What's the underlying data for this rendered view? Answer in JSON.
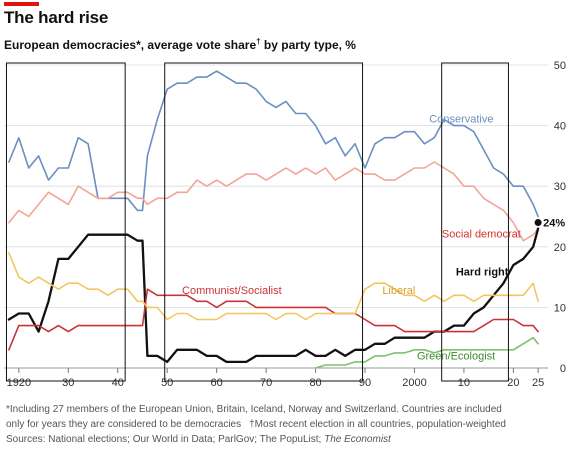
{
  "header": {
    "title": "The hard rise",
    "subtitle_main": "European democracies",
    "subtitle_mid": ", average vote share",
    "subtitle_end": " by party type, %",
    "mark_star": "*",
    "mark_dagger": "†",
    "accent_color": "#e3120b"
  },
  "footnotes": {
    "line1": "*Including 27 members of the European Union, Britain, Iceland, Norway and Switzerland. Countries are included",
    "line2a": "only for years they are considered to be democracies",
    "line2b": "†Most recent election in all countries, population-weighted",
    "line3a": "Sources: National elections; Our World in Data; ParlGov; The PopuList; ",
    "line3b": "The Economist"
  },
  "chart_data": {
    "type": "line",
    "xlim": [
      1917,
      2027
    ],
    "ylim": [
      0,
      50
    ],
    "x_ticks": [
      1920,
      1930,
      1940,
      1950,
      1960,
      1970,
      1980,
      1990,
      2000,
      2010,
      2020,
      2025
    ],
    "x_tick_labels": [
      "1920",
      "30",
      "40",
      "50",
      "60",
      "70",
      "80",
      "90",
      "2000",
      "10",
      "20",
      "25"
    ],
    "y_ticks": [
      0,
      10,
      20,
      30,
      40,
      50
    ],
    "y_tick_labels": [
      "0",
      "10",
      "20",
      "30",
      "40",
      "50"
    ],
    "grid": "horizontal",
    "highlight_periods": [
      [
        1917.5,
        1941.5
      ],
      [
        1949.5,
        1989.5
      ],
      [
        2005.5,
        2019
      ]
    ],
    "end_marker": {
      "x": 2025,
      "y": 24,
      "label": "24%"
    },
    "series": [
      {
        "name": "Conservative",
        "color": "#6a8fc0",
        "width": 1.6,
        "x": [
          1918,
          1920,
          1922,
          1924,
          1926,
          1928,
          1930,
          1932,
          1934,
          1936,
          1938,
          1940,
          1942,
          1944,
          1945,
          1946,
          1948,
          1950,
          1952,
          1954,
          1956,
          1958,
          1960,
          1962,
          1964,
          1966,
          1968,
          1970,
          1972,
          1974,
          1976,
          1978,
          1980,
          1982,
          1984,
          1986,
          1988,
          1990,
          1992,
          1994,
          1996,
          1998,
          2000,
          2002,
          2004,
          2006,
          2008,
          2010,
          2012,
          2014,
          2016,
          2018,
          2020,
          2022,
          2024,
          2025
        ],
        "y": [
          34,
          38,
          33,
          35,
          31,
          33,
          33,
          38,
          37,
          28,
          28,
          28,
          28,
          26,
          26,
          35,
          41,
          46,
          47,
          47,
          48,
          48,
          49,
          48,
          47,
          47,
          46,
          44,
          43,
          44,
          42,
          42,
          40,
          37,
          38,
          35,
          37,
          33,
          37,
          38,
          38,
          39,
          39,
          37,
          38,
          41,
          40,
          40,
          39,
          36,
          33,
          32,
          30,
          30,
          27,
          25
        ],
        "label": {
          "x": 2003,
          "y": 40.5,
          "anchor": "start"
        }
      },
      {
        "name": "Social democrat",
        "color": "#f2a596",
        "color_label": "#d6312b",
        "width": 1.6,
        "x": [
          1918,
          1920,
          1922,
          1924,
          1926,
          1928,
          1930,
          1932,
          1934,
          1936,
          1938,
          1940,
          1942,
          1944,
          1945,
          1946,
          1948,
          1950,
          1952,
          1954,
          1956,
          1958,
          1960,
          1962,
          1964,
          1966,
          1968,
          1970,
          1972,
          1974,
          1976,
          1978,
          1980,
          1982,
          1984,
          1986,
          1988,
          1990,
          1992,
          1994,
          1996,
          1998,
          2000,
          2002,
          2004,
          2006,
          2008,
          2010,
          2012,
          2014,
          2016,
          2018,
          2020,
          2022,
          2024,
          2025
        ],
        "y": [
          24,
          26,
          25,
          27,
          29,
          28,
          27,
          30,
          29,
          28,
          28,
          29,
          29,
          28,
          28,
          27,
          28,
          28,
          29,
          29,
          31,
          30,
          31,
          30,
          31,
          32,
          32,
          31,
          32,
          33,
          32,
          33,
          32,
          33,
          31,
          32,
          33,
          32,
          32,
          31,
          31,
          32,
          33,
          33,
          34,
          33,
          32,
          30,
          30,
          28,
          27,
          26,
          24,
          21,
          22,
          23
        ],
        "label": {
          "x": 2021.5,
          "y": 21.5,
          "anchor": "end"
        }
      },
      {
        "name": "Hard right",
        "color": "#111111",
        "width": 2.3,
        "x": [
          1918,
          1920,
          1922,
          1924,
          1926,
          1928,
          1930,
          1932,
          1934,
          1936,
          1938,
          1940,
          1942,
          1944,
          1945,
          1946,
          1948,
          1950,
          1952,
          1954,
          1956,
          1958,
          1960,
          1962,
          1964,
          1966,
          1968,
          1970,
          1972,
          1974,
          1976,
          1978,
          1980,
          1982,
          1984,
          1986,
          1988,
          1990,
          1992,
          1994,
          1996,
          1998,
          2000,
          2002,
          2004,
          2006,
          2008,
          2010,
          2012,
          2014,
          2016,
          2018,
          2020,
          2022,
          2024,
          2025
        ],
        "y": [
          8,
          9,
          9,
          6,
          11,
          18,
          18,
          20,
          22,
          22,
          22,
          22,
          22,
          21,
          21,
          2,
          2,
          1,
          3,
          3,
          3,
          2,
          2,
          1,
          1,
          1,
          2,
          2,
          2,
          2,
          2,
          3,
          2,
          2,
          3,
          2,
          3,
          3,
          4,
          4,
          5,
          5,
          5,
          5,
          6,
          6,
          7,
          7,
          9,
          10,
          12,
          14,
          17,
          18,
          20,
          23
        ],
        "label": {
          "x": 2019,
          "y": 15.3,
          "anchor": "end"
        }
      },
      {
        "name": "Communist/Socialist",
        "color": "#c93436",
        "color_label": "#c93436",
        "width": 1.6,
        "x": [
          1918,
          1920,
          1922,
          1924,
          1926,
          1928,
          1930,
          1932,
          1934,
          1936,
          1938,
          1940,
          1942,
          1944,
          1945,
          1946,
          1948,
          1950,
          1952,
          1954,
          1956,
          1958,
          1960,
          1962,
          1964,
          1966,
          1968,
          1970,
          1972,
          1974,
          1976,
          1978,
          1980,
          1982,
          1984,
          1986,
          1988,
          1990,
          1992,
          1994,
          1996,
          1998,
          2000,
          2002,
          2004,
          2006,
          2008,
          2010,
          2012,
          2014,
          2016,
          2018,
          2020,
          2022,
          2024,
          2025
        ],
        "y": [
          3,
          7,
          7,
          7,
          6,
          7,
          6,
          7,
          7,
          7,
          7,
          7,
          7,
          7,
          7,
          13,
          12,
          12,
          12,
          12,
          11,
          11,
          10,
          11,
          11,
          11,
          10,
          10,
          10,
          10,
          10,
          10,
          10,
          10,
          9,
          9,
          9,
          8,
          7,
          7,
          7,
          6,
          6,
          6,
          6,
          6,
          6,
          6,
          6,
          7,
          8,
          8,
          8,
          7,
          7,
          6
        ],
        "label": {
          "x": 1953,
          "y": 12.2,
          "anchor": "start"
        }
      },
      {
        "name": "Liberal",
        "color": "#f2c762",
        "color_label": "#d89e2a",
        "width": 1.6,
        "x": [
          1918,
          1920,
          1922,
          1924,
          1926,
          1928,
          1930,
          1932,
          1934,
          1936,
          1938,
          1940,
          1942,
          1944,
          1945,
          1946,
          1948,
          1950,
          1952,
          1954,
          1956,
          1958,
          1960,
          1962,
          1964,
          1966,
          1968,
          1970,
          1972,
          1974,
          1976,
          1978,
          1980,
          1982,
          1984,
          1986,
          1988,
          1990,
          1992,
          1994,
          1996,
          1998,
          2000,
          2002,
          2004,
          2006,
          2008,
          2010,
          2012,
          2014,
          2016,
          2018,
          2020,
          2022,
          2024,
          2025
        ],
        "y": [
          19,
          15,
          14,
          15,
          14,
          13,
          14,
          14,
          13,
          13,
          12,
          13,
          13,
          11,
          11,
          10,
          10,
          8,
          9,
          9,
          8,
          8,
          8,
          9,
          9,
          9,
          9,
          9,
          8,
          9,
          9,
          8,
          9,
          9,
          9,
          9,
          9,
          13,
          14,
          14,
          13,
          12,
          12,
          11,
          12,
          11,
          12,
          12,
          11,
          12,
          12,
          12,
          12,
          12,
          14,
          11
        ],
        "label": {
          "x": 1993.5,
          "y": 12.2,
          "anchor": "start"
        }
      },
      {
        "name": "Green/Ecologist",
        "color": "#7ec06c",
        "color_label": "#3d8a2e",
        "width": 1.6,
        "x": [
          1980,
          1982,
          1984,
          1986,
          1988,
          1990,
          1992,
          1994,
          1996,
          1998,
          2000,
          2002,
          2004,
          2006,
          2008,
          2010,
          2012,
          2014,
          2016,
          2018,
          2020,
          2022,
          2024,
          2025
        ],
        "y": [
          0,
          0.5,
          0.5,
          0.5,
          1,
          1,
          2,
          2,
          2.5,
          2.5,
          3,
          3,
          2.5,
          3,
          3,
          3,
          3,
          3,
          3,
          3,
          3,
          4,
          5,
          4
        ],
        "label": {
          "x": 2000.5,
          "y": 1.4,
          "anchor": "start"
        }
      }
    ]
  }
}
